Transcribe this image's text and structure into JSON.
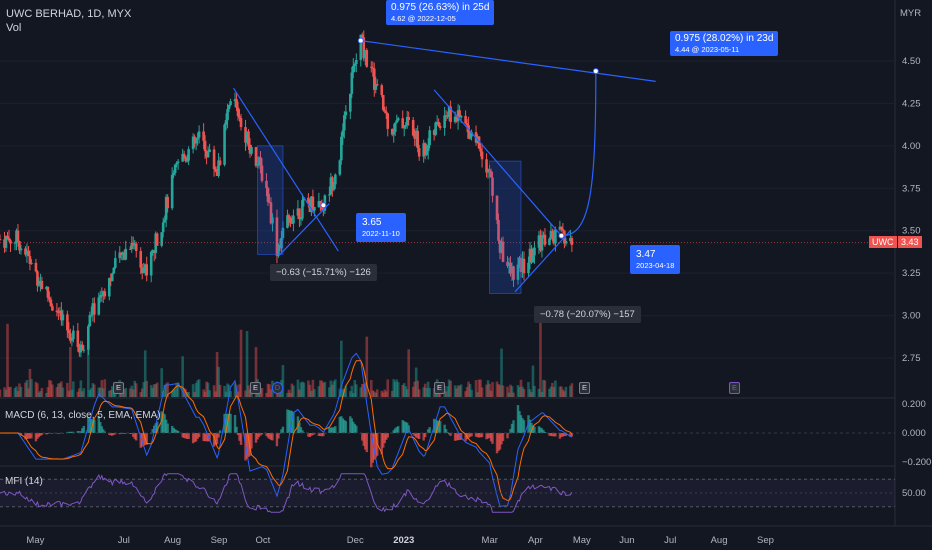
{
  "header": {
    "title": "UWC BERHAD, 1D, MYX",
    "vol_label": "Vol",
    "price_currency": "MYR"
  },
  "colors": {
    "background": "#131722",
    "up": "#26a69a",
    "down": "#ef5350",
    "drawing": "#2962ff",
    "macd_line": "#2962ff",
    "signal_line": "#ff6d00",
    "mfi_line": "#7e57c2"
  },
  "indicators": {
    "macd_label": "MACD (6, 13, close, 5, EMA, EMA)",
    "mfi_label": "MFI (14)"
  },
  "annotations": {
    "top_measure": {
      "main": "0.975 (26.63%) in 25d",
      "sub": "4.62 @ 2022-12-05"
    },
    "right_measure": {
      "main": "0.975 (28.02%) in 23d",
      "sub": "4.44 @ 2023-05-11"
    },
    "oct_low": {
      "main": "3.65",
      "sub": "2022-11-10"
    },
    "apr_low": {
      "main": "3.47",
      "sub": "2023-04-18"
    },
    "oct_range": "−0.63 (−15.71%) −126",
    "mar_range": "−0.78 (−20.07%) −157"
  },
  "earnings_marks": [
    "E",
    "E",
    "E",
    "E",
    "E"
  ],
  "dividend_mark": "D",
  "price_tag": {
    "symbol": "UWC",
    "value": "3.43"
  },
  "chart_data": [
    {
      "type": "candlestick",
      "title": "UWC BERHAD, 1D, MYX",
      "ylabel": "MYR",
      "ylim": [
        2.55,
        4.72
      ],
      "y_ticks": [
        "4.50",
        "4.25",
        "4.00",
        "3.75",
        "3.50",
        "3.25",
        "3.00",
        "2.75"
      ],
      "x_ticks": [
        "May",
        "Jul",
        "Aug",
        "Sep",
        "Oct",
        "Dec",
        "2023",
        "Mar",
        "Apr",
        "May",
        "Jun",
        "Jul",
        "Aug",
        "Sep"
      ],
      "close_path": [
        [
          "2022-04-20",
          3.45
        ],
        [
          "2022-05-05",
          3.2
        ],
        [
          "2022-05-20",
          2.95
        ],
        [
          "2022-06-01",
          2.8
        ],
        [
          "2022-06-10",
          3.05
        ],
        [
          "2022-06-25",
          3.3
        ],
        [
          "2022-07-05",
          3.45
        ],
        [
          "2022-07-15",
          3.25
        ],
        [
          "2022-07-25",
          3.55
        ],
        [
          "2022-08-05",
          3.9
        ],
        [
          "2022-08-20",
          4.05
        ],
        [
          "2022-08-31",
          3.85
        ],
        [
          "2022-09-10",
          4.3
        ],
        [
          "2022-09-20",
          4.05
        ],
        [
          "2022-10-02",
          3.8
        ],
        [
          "2022-10-10",
          3.4
        ],
        [
          "2022-10-20",
          3.6
        ],
        [
          "2022-11-05",
          3.68
        ],
        [
          "2022-11-10",
          3.65
        ],
        [
          "2022-11-20",
          3.9
        ],
        [
          "2022-11-29",
          4.4
        ],
        [
          "2022-12-05",
          4.62
        ],
        [
          "2022-12-15",
          4.35
        ],
        [
          "2022-12-25",
          4.1
        ],
        [
          "2023-01-05",
          4.15
        ],
        [
          "2023-01-15",
          3.95
        ],
        [
          "2023-01-30",
          4.2
        ],
        [
          "2023-02-10",
          4.15
        ],
        [
          "2023-02-20",
          4.05
        ],
        [
          "2023-03-01",
          3.85
        ],
        [
          "2023-03-08",
          3.4
        ],
        [
          "2023-03-15",
          3.25
        ],
        [
          "2023-03-25",
          3.3
        ],
        [
          "2023-04-05",
          3.45
        ],
        [
          "2023-04-18",
          3.47
        ],
        [
          "2023-04-25",
          3.43
        ]
      ],
      "last_price": 3.43,
      "projection": [
        [
          "2023-04-18",
          3.47
        ],
        [
          "2023-05-11",
          4.44
        ]
      ],
      "upper_trendline": [
        [
          "2022-12-05",
          4.62
        ],
        [
          "2023-06-20",
          4.38
        ]
      ]
    },
    {
      "type": "line",
      "title": "MACD (6, 13, close, 5, EMA, EMA)",
      "ylim": [
        -0.2,
        0.2
      ],
      "y_ticks": [
        "0.200",
        "0.000",
        "−0.200"
      ]
    },
    {
      "type": "line",
      "title": "MFI (14)",
      "y_ticks": [
        "50.00"
      ],
      "bands": [
        80,
        20
      ]
    }
  ]
}
